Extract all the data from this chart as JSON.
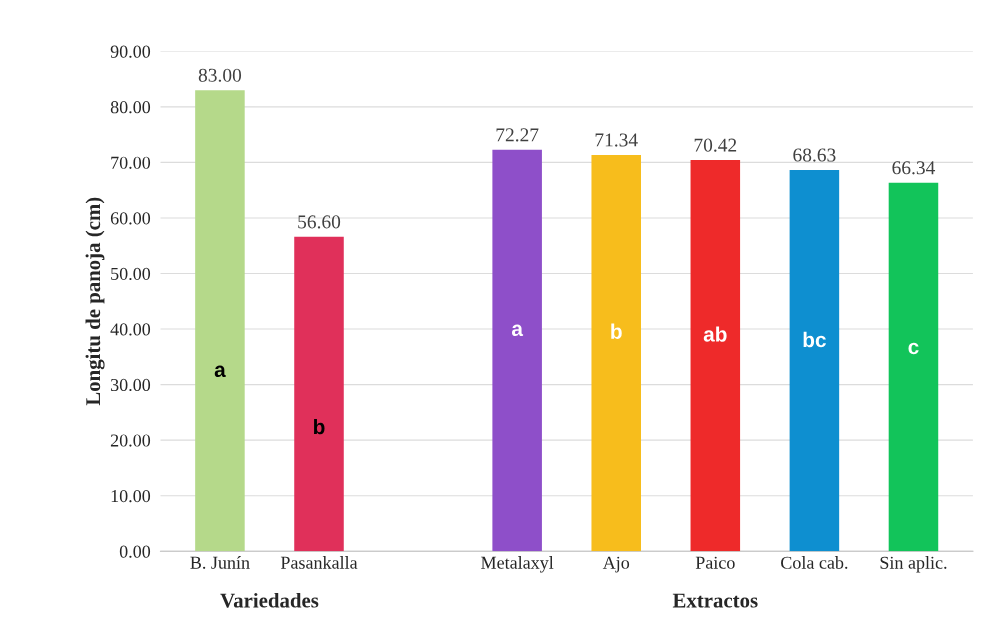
{
  "chart_data": {
    "type": "bar",
    "categories": [
      "B. Junín",
      "Pasankalla",
      null,
      "Metalaxyl",
      "Ajo",
      "Paico",
      "Cola cab.",
      "Sin aplic."
    ],
    "values": [
      83.0,
      56.6,
      null,
      72.27,
      71.34,
      70.42,
      68.63,
      66.34
    ],
    "value_labels": [
      "83.00",
      "56.60",
      null,
      "72.27",
      "71.34",
      "70.42",
      "68.63",
      "66.34"
    ],
    "colors": [
      "#b5d98a",
      "#e0305a",
      "#ffffff",
      "#8e4fc9",
      "#f7bd1c",
      "#ee2a2a",
      "#0e8fd0",
      "#12c45a"
    ],
    "ylabel": "Longitu de panoja (cm)",
    "ylim": [
      0,
      90
    ],
    "yticks": [
      {
        "value": 0,
        "label": "0.00"
      },
      {
        "value": 10,
        "label": "10.00"
      },
      {
        "value": 20,
        "label": "20.00"
      },
      {
        "value": 30,
        "label": "30.00"
      },
      {
        "value": 40,
        "label": "40.00"
      },
      {
        "value": 50,
        "label": "50.00"
      },
      {
        "value": 60,
        "label": "60.00"
      },
      {
        "value": 70,
        "label": "70.00"
      },
      {
        "value": 80,
        "label": "80.00"
      },
      {
        "value": 90,
        "label": "90.00"
      }
    ],
    "grid": "y",
    "annotations": [
      "a",
      "b",
      "a",
      "b",
      "ab",
      "bc",
      "c",
      "Variedades",
      "Extractos"
    ]
  }
}
